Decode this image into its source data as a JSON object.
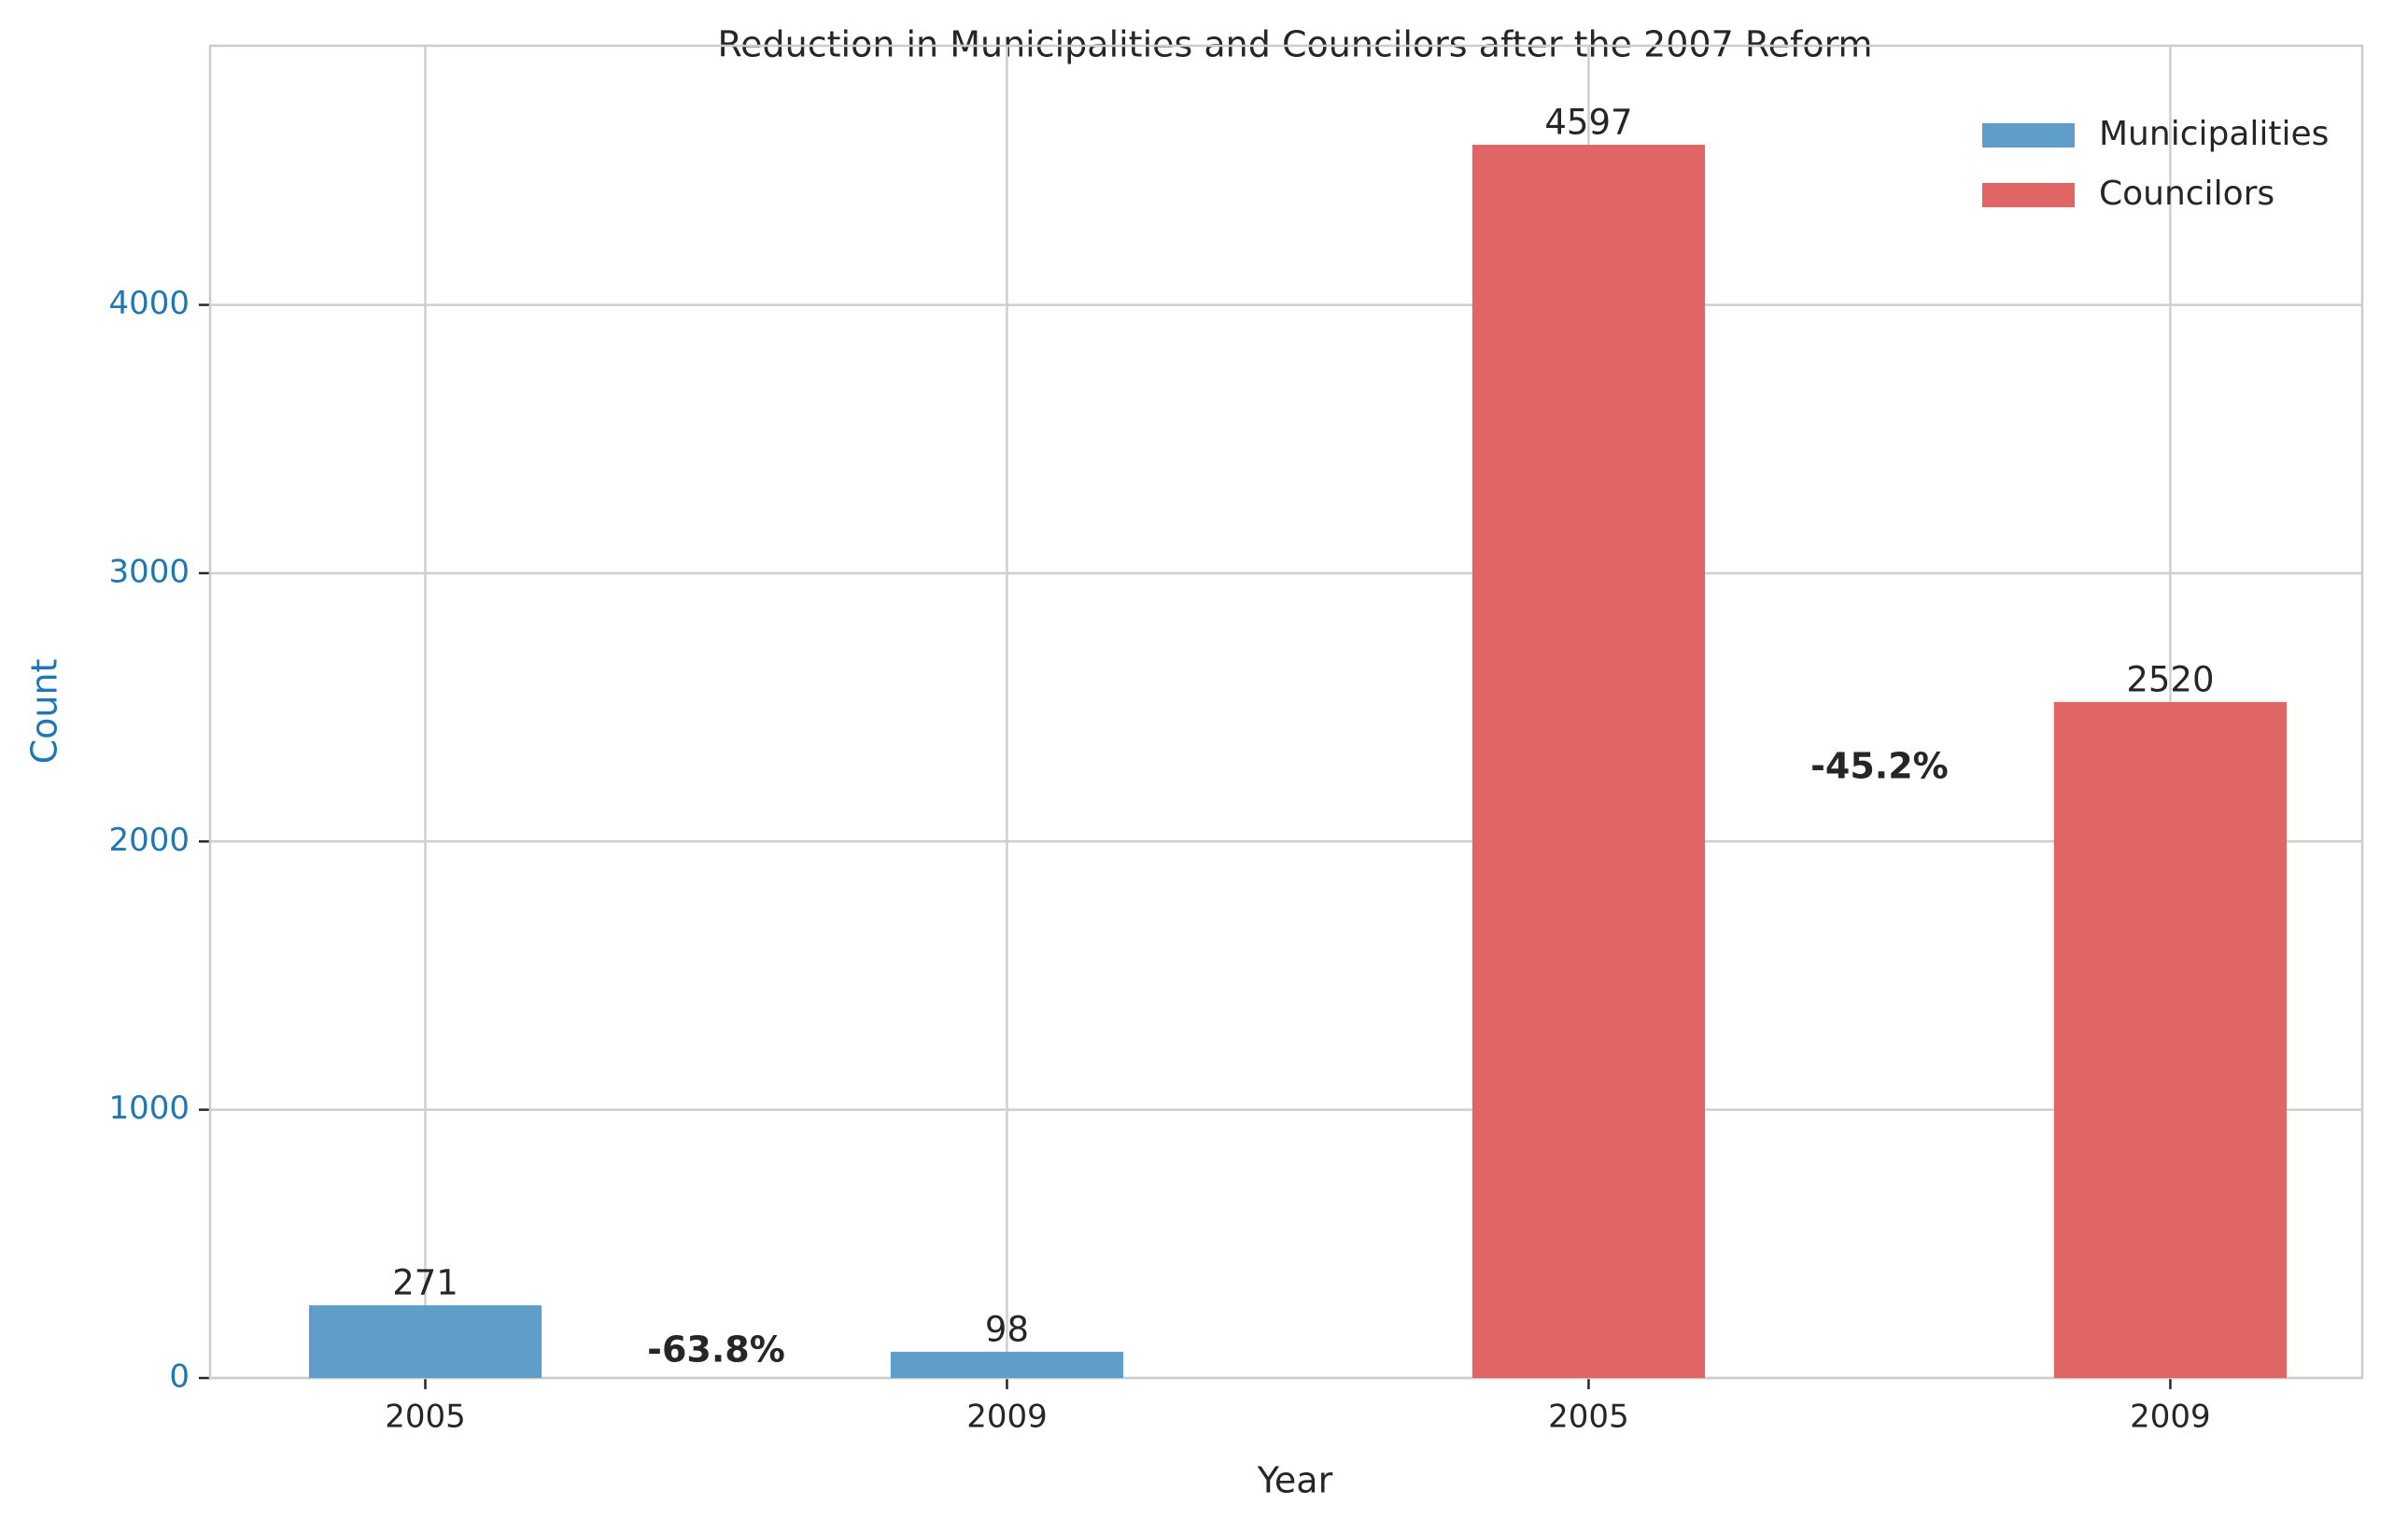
{
  "chart_data": {
    "type": "bar",
    "title": "Reduction in Municipalities and Councilors after the 2007 Reform",
    "x_label": "Year",
    "y_label": "Count",
    "categories": [
      "2005",
      "2009",
      "2005",
      "2009"
    ],
    "series": [
      {
        "name": "Municipalities",
        "color": "#5f9ec9",
        "values": [
          271,
          98,
          null,
          null
        ]
      },
      {
        "name": "Councilors",
        "color": "#e06666",
        "values": [
          null,
          null,
          4597,
          2520
        ]
      }
    ],
    "annotations": [
      "-63.8%",
      "-45.2%"
    ],
    "ylim": [
      0,
      4966
    ],
    "yticks": [
      0,
      1000,
      2000,
      3000,
      4000
    ],
    "grid": true,
    "legend": "upper right"
  }
}
